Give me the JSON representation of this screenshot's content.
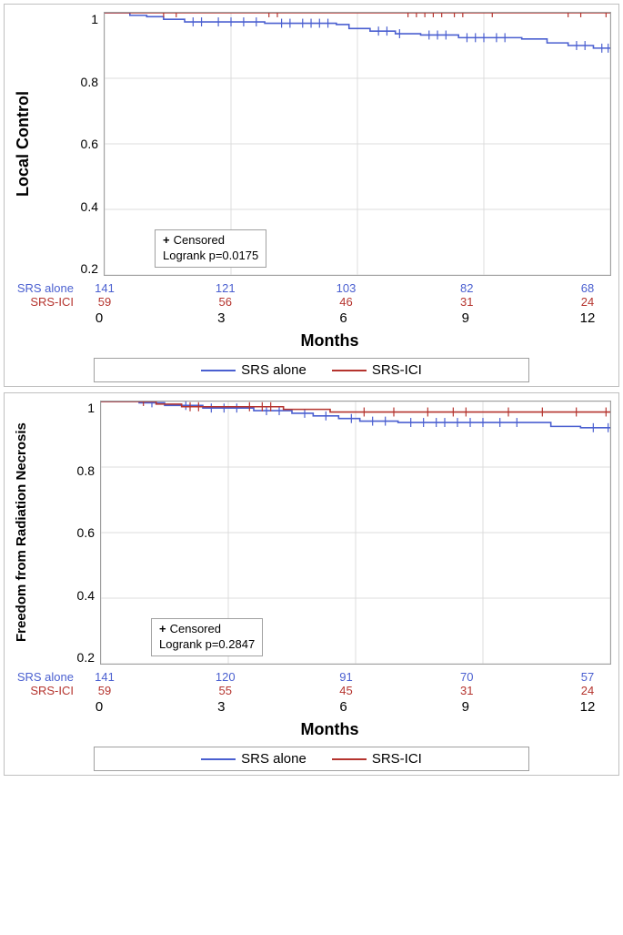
{
  "global": {
    "xlabel": "Months",
    "xlim": [
      0,
      12
    ],
    "xticks": [
      0,
      3,
      6,
      9,
      12
    ],
    "ylim": [
      0.0,
      1.0
    ],
    "yticks": [
      1.0,
      0.8,
      0.6,
      0.4,
      0.2
    ],
    "grid_color": "#dcdcdc",
    "plot_border_color": "#a0a0a0",
    "background_color": "#ffffff",
    "tick_font_size": 14,
    "label_font_size": 18,
    "series": [
      {
        "key": "srs_alone",
        "label": "SRS alone",
        "color": "#4a5fd0"
      },
      {
        "key": "srs_ici",
        "label": "SRS-ICI",
        "color": "#b5342e"
      }
    ],
    "censored_symbol": "+",
    "censored_label": "Censored"
  },
  "panelA": {
    "ylabel": "Local Control",
    "logrank_text": "Logrank p=0.0175",
    "risk_table": {
      "srs_alone": [
        141,
        121,
        103,
        82,
        68
      ],
      "srs_ici": [
        59,
        56,
        46,
        31,
        24
      ]
    },
    "km": {
      "srs_ici": {
        "points": [
          [
            0,
            1.0
          ],
          [
            12,
            1.0
          ]
        ],
        "censor_x": [
          1.4,
          1.7,
          3.9,
          4.1,
          7.2,
          7.4,
          7.6,
          7.8,
          8.0,
          8.3,
          8.5,
          9.2,
          11.0,
          11.3,
          11.9
        ]
      },
      "srs_alone": {
        "points": [
          [
            0,
            1.0
          ],
          [
            0.6,
            1.0
          ],
          [
            0.6,
            0.99
          ],
          [
            1.0,
            0.99
          ],
          [
            1.0,
            0.985
          ],
          [
            1.4,
            0.985
          ],
          [
            1.4,
            0.975
          ],
          [
            1.9,
            0.975
          ],
          [
            1.9,
            0.965
          ],
          [
            3.8,
            0.965
          ],
          [
            3.8,
            0.96
          ],
          [
            5.5,
            0.96
          ],
          [
            5.5,
            0.955
          ],
          [
            5.8,
            0.955
          ],
          [
            5.8,
            0.94
          ],
          [
            6.3,
            0.94
          ],
          [
            6.3,
            0.93
          ],
          [
            6.9,
            0.93
          ],
          [
            6.9,
            0.92
          ],
          [
            7.3,
            0.92
          ],
          [
            7.5,
            0.92
          ],
          [
            7.5,
            0.915
          ],
          [
            8.4,
            0.915
          ],
          [
            8.4,
            0.905
          ],
          [
            9.9,
            0.905
          ],
          [
            9.9,
            0.9
          ],
          [
            10.5,
            0.9
          ],
          [
            10.5,
            0.885
          ],
          [
            11.0,
            0.885
          ],
          [
            11.0,
            0.875
          ],
          [
            11.6,
            0.875
          ],
          [
            11.6,
            0.865
          ],
          [
            12,
            0.865
          ]
        ],
        "censor_x": [
          2.1,
          2.3,
          2.7,
          3.0,
          3.3,
          3.6,
          4.2,
          4.4,
          4.7,
          4.9,
          5.1,
          5.3,
          6.5,
          6.7,
          7.0,
          7.7,
          7.9,
          8.1,
          8.6,
          8.8,
          9.0,
          9.3,
          9.5,
          11.2,
          11.4,
          11.8,
          11.95
        ]
      }
    }
  },
  "panelB": {
    "ylabel": "Freedom from Radiation Necrosis",
    "logrank_text": "Logrank p=0.2847",
    "risk_table": {
      "srs_alone": [
        141,
        120,
        91,
        70,
        57
      ],
      "srs_ici": [
        59,
        55,
        45,
        31,
        24
      ]
    },
    "km": {
      "srs_ici": {
        "points": [
          [
            0,
            1.0
          ],
          [
            1.3,
            1.0
          ],
          [
            1.3,
            0.99
          ],
          [
            1.9,
            0.99
          ],
          [
            1.9,
            0.98
          ],
          [
            4.3,
            0.98
          ],
          [
            4.3,
            0.97
          ],
          [
            5.4,
            0.97
          ],
          [
            5.4,
            0.96
          ],
          [
            12,
            0.96
          ]
        ],
        "censor_x": [
          1.0,
          2.1,
          2.3,
          3.5,
          3.8,
          4.0,
          6.2,
          6.9,
          7.7,
          8.3,
          8.6,
          9.6,
          10.4,
          11.2,
          11.9
        ]
      },
      "srs_alone": {
        "points": [
          [
            0,
            1.0
          ],
          [
            0.9,
            1.0
          ],
          [
            0.9,
            0.995
          ],
          [
            1.5,
            0.995
          ],
          [
            1.5,
            0.985
          ],
          [
            2.4,
            0.985
          ],
          [
            2.4,
            0.975
          ],
          [
            3.6,
            0.975
          ],
          [
            3.6,
            0.965
          ],
          [
            4.5,
            0.965
          ],
          [
            4.5,
            0.955
          ],
          [
            5.0,
            0.955
          ],
          [
            5.0,
            0.945
          ],
          [
            5.6,
            0.945
          ],
          [
            5.6,
            0.935
          ],
          [
            6.1,
            0.935
          ],
          [
            6.1,
            0.925
          ],
          [
            7.0,
            0.925
          ],
          [
            7.0,
            0.92
          ],
          [
            10.6,
            0.92
          ],
          [
            10.6,
            0.905
          ],
          [
            11.3,
            0.905
          ],
          [
            11.3,
            0.9
          ],
          [
            12,
            0.9
          ]
        ],
        "censor_x": [
          1.2,
          2.0,
          2.6,
          2.9,
          3.2,
          3.9,
          4.2,
          4.8,
          5.3,
          5.9,
          6.4,
          6.7,
          7.3,
          7.6,
          7.9,
          8.1,
          8.4,
          8.7,
          9.0,
          9.4,
          9.8,
          11.6,
          11.95
        ]
      }
    }
  }
}
